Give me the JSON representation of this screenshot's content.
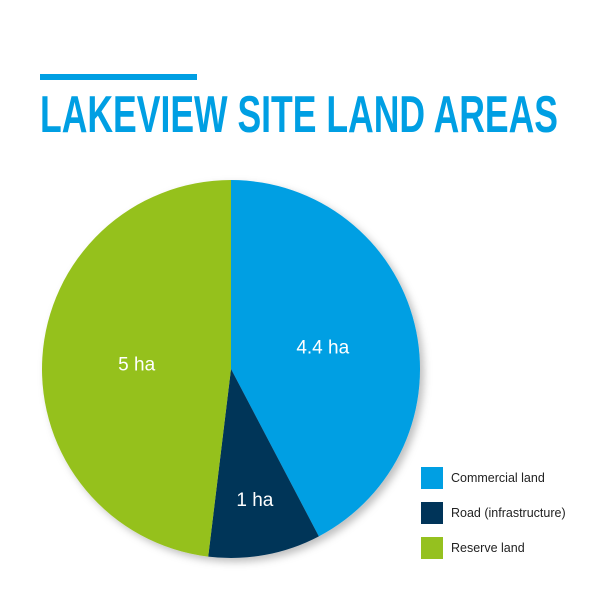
{
  "chart_data": {
    "type": "pie",
    "title": "LAKEVIEW SITE LAND AREAS",
    "start_angle": "12 o'clock, clockwise",
    "slices": [
      {
        "name": "Commercial land",
        "value": 4.4,
        "label": "4.4 ha",
        "color": "#009fe3"
      },
      {
        "name": "Road (infrastructure)",
        "value": 1,
        "label": "1 ha",
        "color": "#003459"
      },
      {
        "name": "Reserve land",
        "value": 5,
        "label": "5 ha",
        "color": "#95c11f"
      }
    ],
    "legend_placement": "bottom-right",
    "title_color": "#009fe3"
  }
}
